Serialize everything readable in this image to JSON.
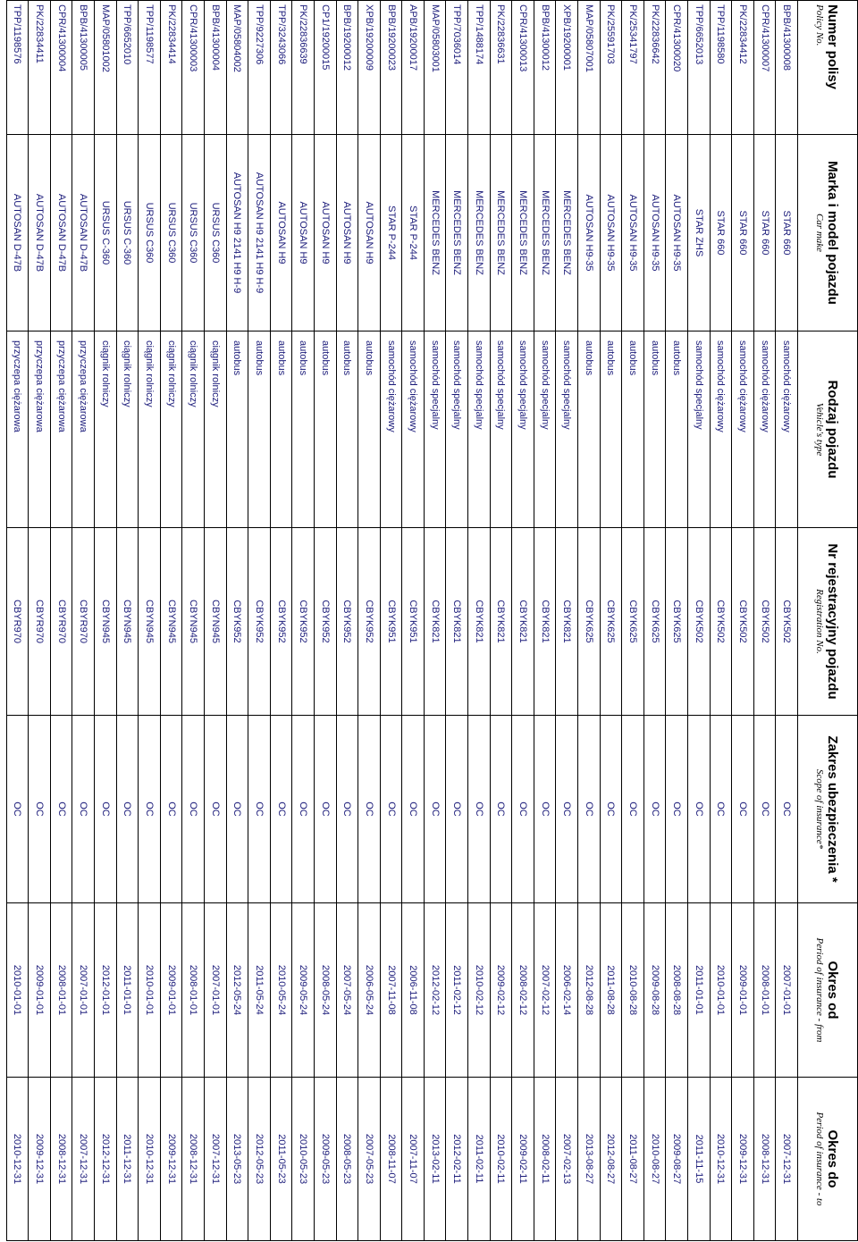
{
  "table": {
    "columns": [
      {
        "title": "Numer polisy",
        "subtitle": "Policy No."
      },
      {
        "title": "Marka i model pojazdu",
        "subtitle": "Car make"
      },
      {
        "title": "Rodzaj pojazdu",
        "subtitle": "Vehicle's type"
      },
      {
        "title": "Nr rejestracyjny pojazdu",
        "subtitle": "Registration No."
      },
      {
        "title": "Zakres ubezpieczenia *",
        "subtitle": "Scope of insurance*"
      },
      {
        "title": "Okres od",
        "subtitle": "Period of insurance - from"
      },
      {
        "title": "Okres do",
        "subtitle": "Period of insurance - to"
      }
    ],
    "rows": [
      [
        "BPB/41300008",
        "STAR 660",
        "samochód ciężarowy",
        "CBYK502",
        "OC",
        "2007-01-01",
        "2007-12-31"
      ],
      [
        "CPR/41300007",
        "STAR 660",
        "samochód ciężarowy",
        "CBYK502",
        "OC",
        "2008-01-01",
        "2008-12-31"
      ],
      [
        "PK/22834412",
        "STAR 660",
        "samochód ciężarowy",
        "CBYK502",
        "OC",
        "2009-01-01",
        "2009-12-31"
      ],
      [
        "TPP/1198580",
        "STAR 660",
        "samochód ciężarowy",
        "CBYK502",
        "OC",
        "2010-01-01",
        "2010-12-31"
      ],
      [
        "TPP/6652013",
        "STAR ZHS",
        "samochód specjalny",
        "CBYK502",
        "OC",
        "2011-01-01",
        "2011-11-15"
      ],
      [
        "CPR/41300020",
        "AUTOSAN H9-35",
        "autobus",
        "CBYK625",
        "OC",
        "2008-08-28",
        "2009-08-27"
      ],
      [
        "PK/22836642",
        "AUTOSAN H9-35",
        "autobus",
        "CBYK625",
        "OC",
        "2009-08-28",
        "2010-08-27"
      ],
      [
        "PK/25341797",
        "AUTOSAN H9-35",
        "autobus",
        "CBYK625",
        "OC",
        "2010-08-28",
        "2011-08-27"
      ],
      [
        "PK/25591703",
        "AUTOSAN H9-35",
        "autobus",
        "CBYK625",
        "OC",
        "2011-08-28",
        "2012-08-27"
      ],
      [
        "MAP/05807001",
        "AUTOSAN H9-35",
        "autobus",
        "CBYK625",
        "OC",
        "2012-08-28",
        "2013-08-27"
      ],
      [
        "XPB/19200001",
        "MERCEDES BENZ",
        "samochód specjalny",
        "CBYK821",
        "OC",
        "2006-02-14",
        "2007-02-13"
      ],
      [
        "BPB/41300012",
        "MERCEDES BENZ",
        "samochód specjalny",
        "CBYK821",
        "OC",
        "2007-02-12",
        "2008-02-11"
      ],
      [
        "CPR/41300013",
        "MERCEDES BENZ",
        "samochód specjalny",
        "CBYK821",
        "OC",
        "2008-02-12",
        "2009-02-11"
      ],
      [
        "PK/22836631",
        "MERCEDES BENZ",
        "samochód specjalny",
        "CBYK821",
        "OC",
        "2009-02-12",
        "2010-02-11"
      ],
      [
        "TPP/1488174",
        "MERCEDES BENZ",
        "samochód specjalny",
        "CBYK821",
        "OC",
        "2010-02-12",
        "2011-02-11"
      ],
      [
        "TPP/7036014",
        "MERCEDES BENZ",
        "samochód specjalny",
        "CBYK821",
        "OC",
        "2011-02-12",
        "2012-02-11"
      ],
      [
        "MAP/05803001",
        "MERCEDES BENZ",
        "samochód specjalny",
        "CBYK821",
        "OC",
        "2012-02-12",
        "2013-02-11"
      ],
      [
        "APB/19200017",
        "STAR P-244",
        "samochód ciężarowy",
        "CBYK951",
        "OC",
        "2006-11-08",
        "2007-11-07"
      ],
      [
        "BPB/19200023",
        "STAR P-244",
        "samochód ciężarowy",
        "CBYK951",
        "OC",
        "2007-11-08",
        "2008-11-07"
      ],
      [
        "XPB/19200009",
        "AUTOSAN H9",
        "autobus",
        "CBYK952",
        "OC",
        "2006-05-24",
        "2007-05-23"
      ],
      [
        "BPB/19200012",
        "AUTOSAN H9",
        "autobus",
        "CBYK952",
        "OC",
        "2007-05-24",
        "2008-05-23"
      ],
      [
        "CP1/19200015",
        "AUTOSAN H9",
        "autobus",
        "CBYK952",
        "OC",
        "2008-05-24",
        "2009-05-23"
      ],
      [
        "PK/22836639",
        "AUTOSAN H9",
        "autobus",
        "CBYK952",
        "OC",
        "2009-05-24",
        "2010-05-23"
      ],
      [
        "TPP/3243066",
        "AUTOSAN H9",
        "autobus",
        "CBYK952",
        "OC",
        "2010-05-24",
        "2011-05-23"
      ],
      [
        "TPP/9227306",
        "AUTOSAN H9 2141 H9 H-9",
        "autobus",
        "CBYK952",
        "OC",
        "2011-05-24",
        "2012-05-23"
      ],
      [
        "MAP/05804002",
        "AUTOSAN H9 2141 H9 H-9",
        "autobus",
        "CBYK952",
        "OC",
        "2012-05-24",
        "2013-05-23"
      ],
      [
        "BPB/41300004",
        "URSUS C360",
        "ciągnik rolniczy",
        "CBYN945",
        "OC",
        "2007-01-01",
        "2007-12-31"
      ],
      [
        "CPR/41300003",
        "URSUS C360",
        "ciągnik rolniczy",
        "CBYN945",
        "OC",
        "2008-01-01",
        "2008-12-31"
      ],
      [
        "PK/22834414",
        "URSUS C360",
        "ciągnik rolniczy",
        "CBYN945",
        "OC",
        "2009-01-01",
        "2009-12-31"
      ],
      [
        "TPP/1198577",
        "URSUS C360",
        "ciągnik rolniczy",
        "CBYN945",
        "OC",
        "2010-01-01",
        "2010-12-31"
      ],
      [
        "TPP/6652010",
        "URSUS C-360",
        "ciągnik rolniczy",
        "CBYN945",
        "OC",
        "2011-01-01",
        "2011-12-31"
      ],
      [
        "MAP/05801002",
        "URSUS C-360",
        "ciągnik rolniczy",
        "CBYN945",
        "OC",
        "2012-01-01",
        "2012-12-31"
      ],
      [
        "BPB/41300005",
        "AUTOSAN D-47B",
        "przyczepa ciężarowa",
        "CBYR970",
        "OC",
        "2007-01-01",
        "2007-12-31"
      ],
      [
        "CPR/41300004",
        "AUTOSAN D-47B",
        "przyczepa ciężarowa",
        "CBYR970",
        "OC",
        "2008-01-01",
        "2008-12-31"
      ],
      [
        "PK/22834411",
        "AUTOSAN D-47B",
        "przyczepa ciężarowa",
        "CBYR970",
        "OC",
        "2009-01-01",
        "2009-12-31"
      ],
      [
        "TPP/1198576",
        "AUTOSAN D-47B",
        "przyczepa ciężarowa",
        "CBYR970",
        "OC",
        "2010-01-01",
        "2010-12-31"
      ]
    ]
  }
}
